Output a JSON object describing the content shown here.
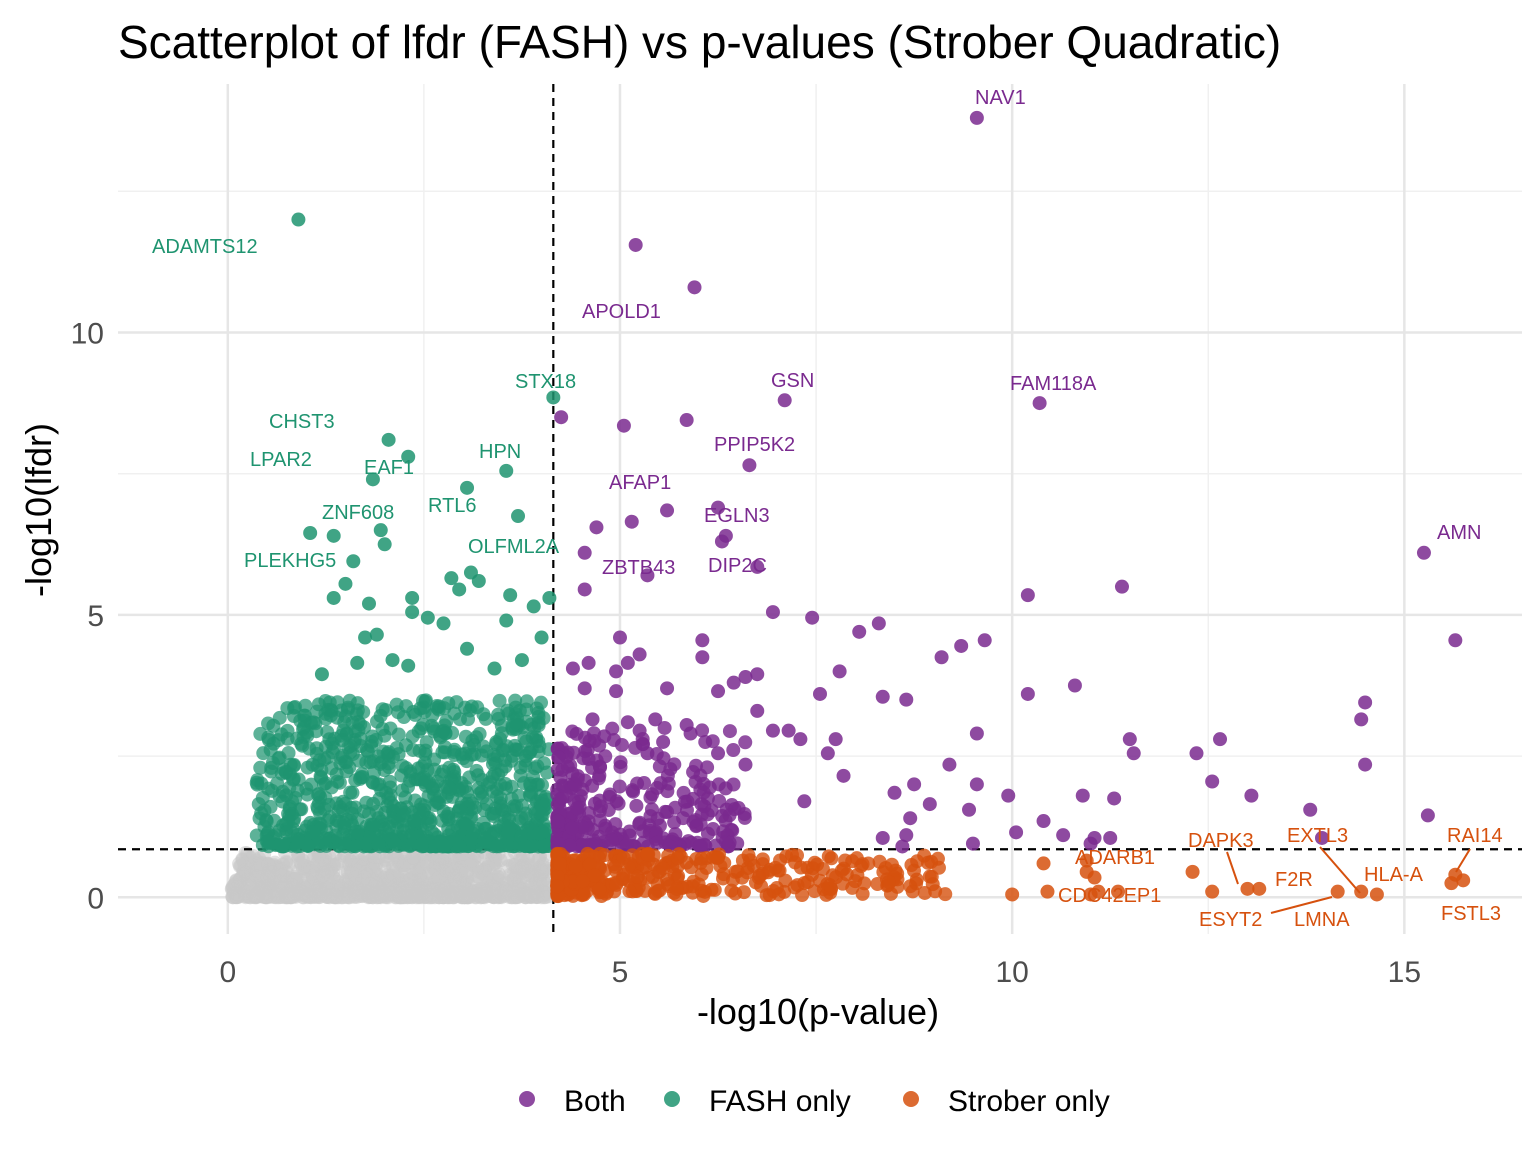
{
  "chart_data": {
    "type": "scatter",
    "title": "Scatterplot of lfdr (FASH) vs p-values (Strober Quadratic)",
    "xlabel": "-log10(p-value)",
    "ylabel": "-log10(lfdr)",
    "xlim": [
      -1.4,
      16.5
    ],
    "ylim": [
      -0.65,
      14.4
    ],
    "x_ticks": [
      0,
      5,
      10,
      15
    ],
    "y_ticks": [
      0,
      5,
      10
    ],
    "grid": true,
    "thresholds": {
      "x": 4.15,
      "y": 0.85
    },
    "legend_position": "bottom",
    "colors": {
      "Both": "#7a2a8f",
      "FASH only": "#1f9470",
      "Strober only": "#d6510e",
      "neither": "#c8c8c8"
    },
    "series": [
      {
        "name": "Both",
        "color": "#7a2a8f"
      },
      {
        "name": "FASH only",
        "color": "#1f9470"
      },
      {
        "name": "Strober only",
        "color": "#d6510e"
      }
    ],
    "points": {
      "Both": [
        [
          9.55,
          13.8
        ],
        [
          5.2,
          11.55
        ],
        [
          5.95,
          10.8
        ],
        [
          7.1,
          8.8
        ],
        [
          10.35,
          8.75
        ],
        [
          4.25,
          8.5
        ],
        [
          5.05,
          8.35
        ],
        [
          5.85,
          8.45
        ],
        [
          6.65,
          7.65
        ],
        [
          5.6,
          6.85
        ],
        [
          6.25,
          6.9
        ],
        [
          5.15,
          6.65
        ],
        [
          4.7,
          6.55
        ],
        [
          6.35,
          6.4
        ],
        [
          6.3,
          6.3
        ],
        [
          4.55,
          6.1
        ],
        [
          6.75,
          5.85
        ],
        [
          5.35,
          5.7
        ],
        [
          4.55,
          5.45
        ],
        [
          15.25,
          6.1
        ],
        [
          10.2,
          5.35
        ],
        [
          11.4,
          5.5
        ],
        [
          6.95,
          5.05
        ],
        [
          7.45,
          4.95
        ],
        [
          5.0,
          4.6
        ],
        [
          6.05,
          4.55
        ],
        [
          8.05,
          4.7
        ],
        [
          8.3,
          4.85
        ],
        [
          9.65,
          4.55
        ],
        [
          9.35,
          4.45
        ],
        [
          9.1,
          4.25
        ],
        [
          15.65,
          4.55
        ],
        [
          4.6,
          4.15
        ],
        [
          5.1,
          4.15
        ],
        [
          6.05,
          4.25
        ],
        [
          4.95,
          4.0
        ],
        [
          4.4,
          4.05
        ],
        [
          5.25,
          4.3
        ],
        [
          6.6,
          3.9
        ],
        [
          6.75,
          3.95
        ],
        [
          7.8,
          4.0
        ],
        [
          4.55,
          3.7
        ],
        [
          4.95,
          3.65
        ],
        [
          5.6,
          3.7
        ],
        [
          6.25,
          3.65
        ],
        [
          6.45,
          3.8
        ],
        [
          7.55,
          3.6
        ],
        [
          8.35,
          3.55
        ],
        [
          8.65,
          3.5
        ],
        [
          10.2,
          3.6
        ],
        [
          10.8,
          3.75
        ],
        [
          14.5,
          3.45
        ],
        [
          14.45,
          3.15
        ],
        [
          4.65,
          3.15
        ],
        [
          5.1,
          3.1
        ],
        [
          5.45,
          3.15
        ],
        [
          5.85,
          3.05
        ],
        [
          6.75,
          3.3
        ],
        [
          6.95,
          2.95
        ],
        [
          7.15,
          2.95
        ],
        [
          7.3,
          2.8
        ],
        [
          9.55,
          2.9
        ],
        [
          11.5,
          2.8
        ],
        [
          12.65,
          2.8
        ],
        [
          4.8,
          2.85
        ],
        [
          5.25,
          2.95
        ],
        [
          5.55,
          2.75
        ],
        [
          5.9,
          2.9
        ],
        [
          7.75,
          2.8
        ],
        [
          11.55,
          2.55
        ],
        [
          12.35,
          2.55
        ],
        [
          14.5,
          2.35
        ],
        [
          6.25,
          2.55
        ],
        [
          6.6,
          2.35
        ],
        [
          7.65,
          2.55
        ],
        [
          9.2,
          2.35
        ],
        [
          4.6,
          2.45
        ],
        [
          5.35,
          2.55
        ],
        [
          7.85,
          2.15
        ],
        [
          8.75,
          2.0
        ],
        [
          9.55,
          2.0
        ],
        [
          12.55,
          2.05
        ],
        [
          13.05,
          1.8
        ],
        [
          9.95,
          1.8
        ],
        [
          10.9,
          1.8
        ],
        [
          11.3,
          1.75
        ],
        [
          13.8,
          1.55
        ],
        [
          15.3,
          1.45
        ],
        [
          7.35,
          1.7
        ],
        [
          8.5,
          1.85
        ],
        [
          8.95,
          1.65
        ],
        [
          9.45,
          1.55
        ],
        [
          8.7,
          1.4
        ],
        [
          10.4,
          1.35
        ],
        [
          10.05,
          1.15
        ],
        [
          10.65,
          1.1
        ],
        [
          11.05,
          1.05
        ],
        [
          11.25,
          1.05
        ],
        [
          13.95,
          1.05
        ],
        [
          8.35,
          1.05
        ],
        [
          8.65,
          1.1
        ],
        [
          9.5,
          0.95
        ],
        [
          8.6,
          0.9
        ],
        [
          11.0,
          0.95
        ]
      ],
      "FASH only": [
        [
          0.9,
          12.0
        ],
        [
          4.15,
          8.85
        ],
        [
          2.05,
          8.1
        ],
        [
          2.3,
          7.8
        ],
        [
          1.85,
          7.4
        ],
        [
          3.55,
          7.55
        ],
        [
          3.05,
          7.25
        ],
        [
          3.7,
          6.75
        ],
        [
          1.95,
          6.5
        ],
        [
          1.05,
          6.45
        ],
        [
          1.35,
          6.4
        ],
        [
          2.0,
          6.25
        ],
        [
          1.6,
          5.95
        ],
        [
          3.1,
          5.75
        ],
        [
          2.85,
          5.65
        ],
        [
          3.2,
          5.6
        ],
        [
          2.95,
          5.45
        ],
        [
          1.5,
          5.55
        ],
        [
          1.35,
          5.3
        ],
        [
          1.8,
          5.2
        ],
        [
          2.35,
          5.3
        ],
        [
          3.6,
          5.35
        ],
        [
          4.1,
          5.3
        ],
        [
          3.9,
          5.15
        ],
        [
          2.35,
          5.05
        ],
        [
          2.55,
          4.95
        ],
        [
          2.75,
          4.85
        ],
        [
          3.55,
          4.9
        ],
        [
          1.75,
          4.6
        ],
        [
          4.0,
          4.6
        ],
        [
          3.05,
          4.4
        ],
        [
          1.9,
          4.65
        ],
        [
          1.65,
          4.15
        ],
        [
          3.4,
          4.05
        ],
        [
          1.2,
          3.95
        ],
        [
          2.1,
          4.2
        ],
        [
          2.3,
          4.1
        ],
        [
          3.75,
          4.2
        ]
      ],
      "Strober only": [
        [
          15.6,
          0.25
        ],
        [
          15.75,
          0.3
        ],
        [
          15.65,
          0.4
        ],
        [
          14.45,
          0.1
        ],
        [
          14.65,
          0.05
        ],
        [
          14.15,
          0.1
        ],
        [
          13.15,
          0.15
        ],
        [
          13.0,
          0.15
        ],
        [
          12.55,
          0.1
        ],
        [
          12.3,
          0.45
        ],
        [
          11.35,
          0.1
        ],
        [
          11.1,
          0.1
        ],
        [
          11.0,
          0.05
        ],
        [
          11.05,
          0.35
        ],
        [
          10.95,
          0.45
        ],
        [
          10.0,
          0.05
        ],
        [
          10.45,
          0.1
        ],
        [
          10.4,
          0.6
        ],
        [
          10.95,
          0.65
        ]
      ]
    },
    "annotations": [
      {
        "text": "NAV1",
        "group": "Both"
      },
      {
        "text": "ADAMTS12",
        "group": "FASH only"
      },
      {
        "text": "APOLD1",
        "group": "Both"
      },
      {
        "text": "STX18",
        "group": "FASH only"
      },
      {
        "text": "GSN",
        "group": "Both"
      },
      {
        "text": "FAM118A",
        "group": "Both"
      },
      {
        "text": "CHST3",
        "group": "FASH only"
      },
      {
        "text": "PPIP5K2",
        "group": "Both"
      },
      {
        "text": "HPN",
        "group": "FASH only"
      },
      {
        "text": "LPAR2",
        "group": "FASH only"
      },
      {
        "text": "EAF1",
        "group": "FASH only"
      },
      {
        "text": "AFAP1",
        "group": "Both"
      },
      {
        "text": "RTL6",
        "group": "FASH only"
      },
      {
        "text": "ZNF608",
        "group": "FASH only"
      },
      {
        "text": "EGLN3",
        "group": "Both"
      },
      {
        "text": "OLFML2A",
        "group": "FASH only"
      },
      {
        "text": "AMN",
        "group": "Both"
      },
      {
        "text": "PLEKHG5",
        "group": "FASH only"
      },
      {
        "text": "ZBTB43",
        "group": "Both"
      },
      {
        "text": "DIP2C",
        "group": "Both"
      },
      {
        "text": "DAPK3",
        "group": "Strober only"
      },
      {
        "text": "EXTL3",
        "group": "Strober only"
      },
      {
        "text": "RAI14",
        "group": "Strober only"
      },
      {
        "text": "ADARB1",
        "group": "Strober only"
      },
      {
        "text": "HLA-A",
        "group": "Strober only"
      },
      {
        "text": "F2R",
        "group": "Strober only"
      },
      {
        "text": "CDC42EP1",
        "group": "Strober only"
      },
      {
        "text": "ESYT2",
        "group": "Strober only"
      },
      {
        "text": "LMNA",
        "group": "Strober only"
      },
      {
        "text": "FSTL3",
        "group": "Strober only"
      }
    ]
  }
}
